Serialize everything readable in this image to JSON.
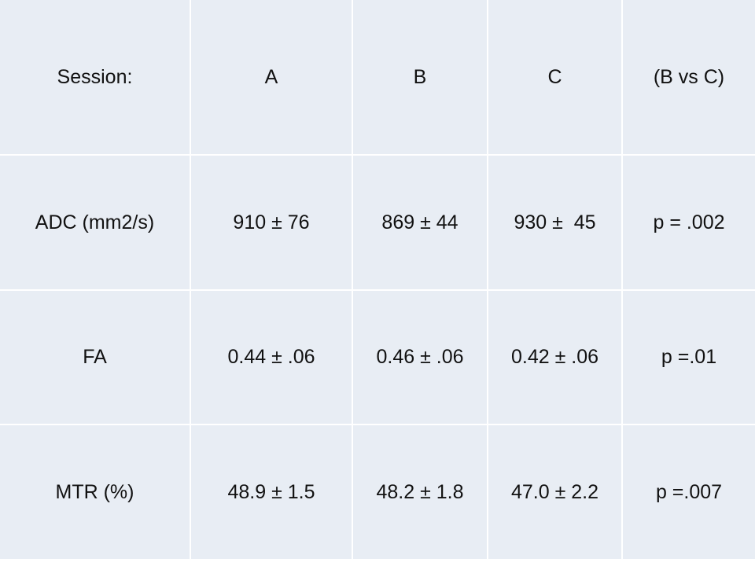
{
  "table": {
    "header": [
      "Session:",
      "A",
      "B",
      "C",
      "(B vs C)"
    ],
    "rows": [
      [
        "ADC (mm2/s)",
        "910 ± 76",
        "869 ± 44",
        "930 ±  45",
        "p = .002"
      ],
      [
        "FA",
        "0.44 ± .06",
        "0.46 ± .06",
        "0.42 ± .06",
        "p =.01"
      ],
      [
        "MTR (%)",
        "48.9 ± 1.5",
        "48.2 ± 1.8",
        "47.0 ± 2.2",
        "p =.007"
      ]
    ]
  }
}
